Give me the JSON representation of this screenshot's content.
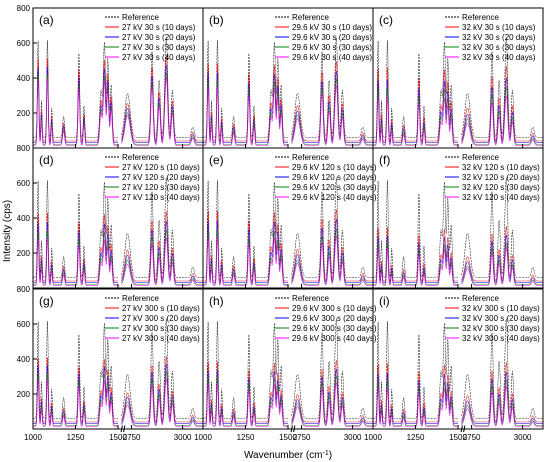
{
  "figure": {
    "ylabel": "Intensity (cps)",
    "xlabel": "Wavenumber (cm",
    "xlabel_sup": "-1",
    "xlabel_end": ")",
    "y_ticks": [
      "800",
      "600",
      "400",
      "200"
    ],
    "x_ticks": [
      "1000",
      "1250",
      "1500",
      "2750",
      "3000"
    ],
    "break_mark": "//"
  },
  "colors": {
    "reference": "#000000",
    "days10": "#ff0000",
    "days20": "#0000ff",
    "days30": "#008000",
    "days40": "#ff00ff"
  },
  "chart_data": [
    {
      "type": "line",
      "panel_label": "(a)",
      "legend": [
        "Reference",
        "27 kV 30 s (10 days)",
        "27 kV 30 s (20 days)",
        "27 kV 30 s (30 days)",
        "27 kV 30 s (40 days)"
      ],
      "ylim": [
        0,
        800
      ],
      "reference_peak_max": 600,
      "peak_scale": [
        0.85,
        0.78,
        0.72,
        0.68
      ]
    },
    {
      "type": "line",
      "panel_label": "(b)",
      "legend": [
        "Reference",
        "29.6 kV 30 s (10 days)",
        "29.6 kV 30 s (20 days)",
        "29.6 kV 30 s (30 days)",
        "29.6 kV 30 s (40 days)"
      ],
      "ylim": [
        0,
        800
      ],
      "reference_peak_max": 600,
      "peak_scale": [
        0.8,
        0.72,
        0.66,
        0.6
      ]
    },
    {
      "type": "line",
      "panel_label": "(c)",
      "legend": [
        "Reference",
        "32 kV 30 s (10 days)",
        "32 kV 30 s (20 days)",
        "32 kV 30 s (30 days)",
        "32 kV 30 s (40 days)"
      ],
      "ylim": [
        0,
        800
      ],
      "reference_peak_max": 600,
      "peak_scale": [
        0.75,
        0.65,
        0.58,
        0.5
      ]
    },
    {
      "type": "line",
      "panel_label": "(d)",
      "legend": [
        "Reference",
        "27 kV 120 s (10 days)",
        "27 kV 120 s (20 days)",
        "27 kV 120 s (30 days)",
        "27 kV 120 s (40 days)"
      ],
      "ylim": [
        0,
        800
      ],
      "reference_peak_max": 600,
      "peak_scale": [
        0.7,
        0.62,
        0.55,
        0.48
      ]
    },
    {
      "type": "line",
      "panel_label": "(e)",
      "legend": [
        "Reference",
        "29.6 kV 120 s (10 days)",
        "29.6 kV 120 s (20 days)",
        "29.6 kV 120 s (30 days)",
        "29.6 kV 120 s (40 days)"
      ],
      "ylim": [
        0,
        800
      ],
      "reference_peak_max": 600,
      "peak_scale": [
        0.72,
        0.64,
        0.56,
        0.5
      ]
    },
    {
      "type": "line",
      "panel_label": "(f)",
      "legend": [
        "Reference",
        "32 kV 120 s (10 days)",
        "32 kV 120 s (20 days)",
        "32 kV 120 s (30 days)",
        "32 kV 120 s (40 days)"
      ],
      "ylim": [
        0,
        800
      ],
      "reference_peak_max": 600,
      "peak_scale": [
        0.55,
        0.48,
        0.42,
        0.38
      ]
    },
    {
      "type": "line",
      "panel_label": "(g)",
      "legend": [
        "Reference",
        "27 kV 300 s (10 days)",
        "27 kV 300 s (20 days)",
        "27 kV 300 s (30 days)",
        "27 kV 300 s (40 days)"
      ],
      "ylim": [
        0,
        800
      ],
      "reference_peak_max": 600,
      "peak_scale": [
        0.66,
        0.6,
        0.54,
        0.48
      ]
    },
    {
      "type": "line",
      "panel_label": "(h)",
      "legend": [
        "Reference",
        "29.6 kV 300 s (10 days)",
        "29.6 kV 300 s (20 days)",
        "29.6 kV 300 s (30 days)",
        "29.6 kV 300 s (40 days)"
      ],
      "ylim": [
        0,
        800
      ],
      "reference_peak_max": 600,
      "peak_scale": [
        0.62,
        0.55,
        0.5,
        0.44
      ]
    },
    {
      "type": "line",
      "panel_label": "(i)",
      "legend": [
        "Reference",
        "32 kV 300 s (10 days)",
        "32 kV 300 s (20 days)",
        "32 kV 300 s (30 days)",
        "32 kV 300 s (40 days)"
      ],
      "ylim": [
        0,
        800
      ],
      "reference_peak_max": 600,
      "peak_scale": [
        0.6,
        0.52,
        0.46,
        0.4
      ]
    }
  ]
}
